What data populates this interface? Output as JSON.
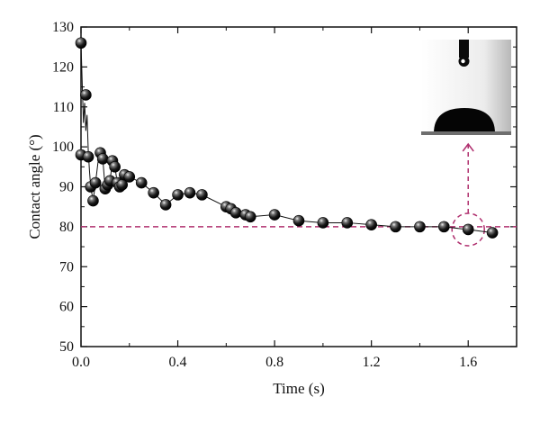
{
  "chart_data": {
    "type": "scatter",
    "xlabel": "Time (s)",
    "ylabel": "Contact angle (°)",
    "xlim": [
      0.0,
      1.8
    ],
    "ylim": [
      50,
      130
    ],
    "x_ticks": [
      0.0,
      0.4,
      0.8,
      1.2,
      1.6
    ],
    "x_tick_labels": [
      "0.0",
      "0.4",
      "0.8",
      "1.2",
      "1.6"
    ],
    "y_ticks": [
      50,
      60,
      70,
      80,
      90,
      100,
      110,
      120,
      130
    ],
    "y_tick_labels": [
      "50",
      "60",
      "70",
      "80",
      "90",
      "100",
      "110",
      "120",
      "130"
    ],
    "grid": false,
    "reference_line": {
      "y": 80,
      "style": "dashed",
      "color": "#b0306f"
    },
    "highlight_point": {
      "x": 1.6,
      "y": 79.3
    },
    "series": [
      {
        "points": [
          [
            0.0,
            126
          ],
          [
            0.02,
            113
          ],
          [
            0.0,
            98
          ],
          [
            0.03,
            97.5
          ],
          [
            0.04,
            90
          ],
          [
            0.05,
            86.5
          ],
          [
            0.06,
            91
          ],
          [
            0.08,
            98.5
          ],
          [
            0.09,
            97
          ],
          [
            0.1,
            89.5
          ],
          [
            0.11,
            90.5
          ],
          [
            0.12,
            91.5
          ],
          [
            0.13,
            96.5
          ],
          [
            0.14,
            95
          ],
          [
            0.15,
            91
          ],
          [
            0.16,
            90
          ],
          [
            0.17,
            90.5
          ],
          [
            0.18,
            93
          ],
          [
            0.2,
            92.5
          ],
          [
            0.25,
            91
          ],
          [
            0.3,
            88.5
          ],
          [
            0.35,
            85.5
          ],
          [
            0.4,
            88
          ],
          [
            0.45,
            88.5
          ],
          [
            0.5,
            88
          ],
          [
            0.6,
            85
          ],
          [
            0.62,
            84.5
          ],
          [
            0.64,
            83.5
          ],
          [
            0.68,
            83
          ],
          [
            0.7,
            82.5
          ],
          [
            0.8,
            83
          ],
          [
            0.9,
            81.5
          ],
          [
            1.0,
            81
          ],
          [
            1.1,
            81
          ],
          [
            1.2,
            80.5
          ],
          [
            1.3,
            80
          ],
          [
            1.4,
            80
          ],
          [
            1.5,
            80
          ],
          [
            1.6,
            79.3
          ],
          [
            1.7,
            78.5
          ]
        ],
        "color": "#111111"
      }
    ],
    "raw_oscillation": [
      [
        0.0,
        126
      ],
      [
        0.005,
        116
      ],
      [
        0.01,
        106
      ],
      [
        0.015,
        111
      ],
      [
        0.02,
        104
      ],
      [
        0.025,
        108
      ],
      [
        0.03,
        99
      ],
      [
        0.035,
        94
      ],
      [
        0.04,
        90
      ],
      [
        0.05,
        86.5
      ],
      [
        0.06,
        91
      ],
      [
        0.07,
        96
      ],
      [
        0.08,
        98.5
      ],
      [
        0.09,
        97
      ],
      [
        0.1,
        89.5
      ],
      [
        0.11,
        90.5
      ],
      [
        0.12,
        91.5
      ],
      [
        0.13,
        96.5
      ],
      [
        0.14,
        95
      ],
      [
        0.15,
        91
      ]
    ],
    "inset": {
      "kind": "droplet-photo"
    }
  }
}
